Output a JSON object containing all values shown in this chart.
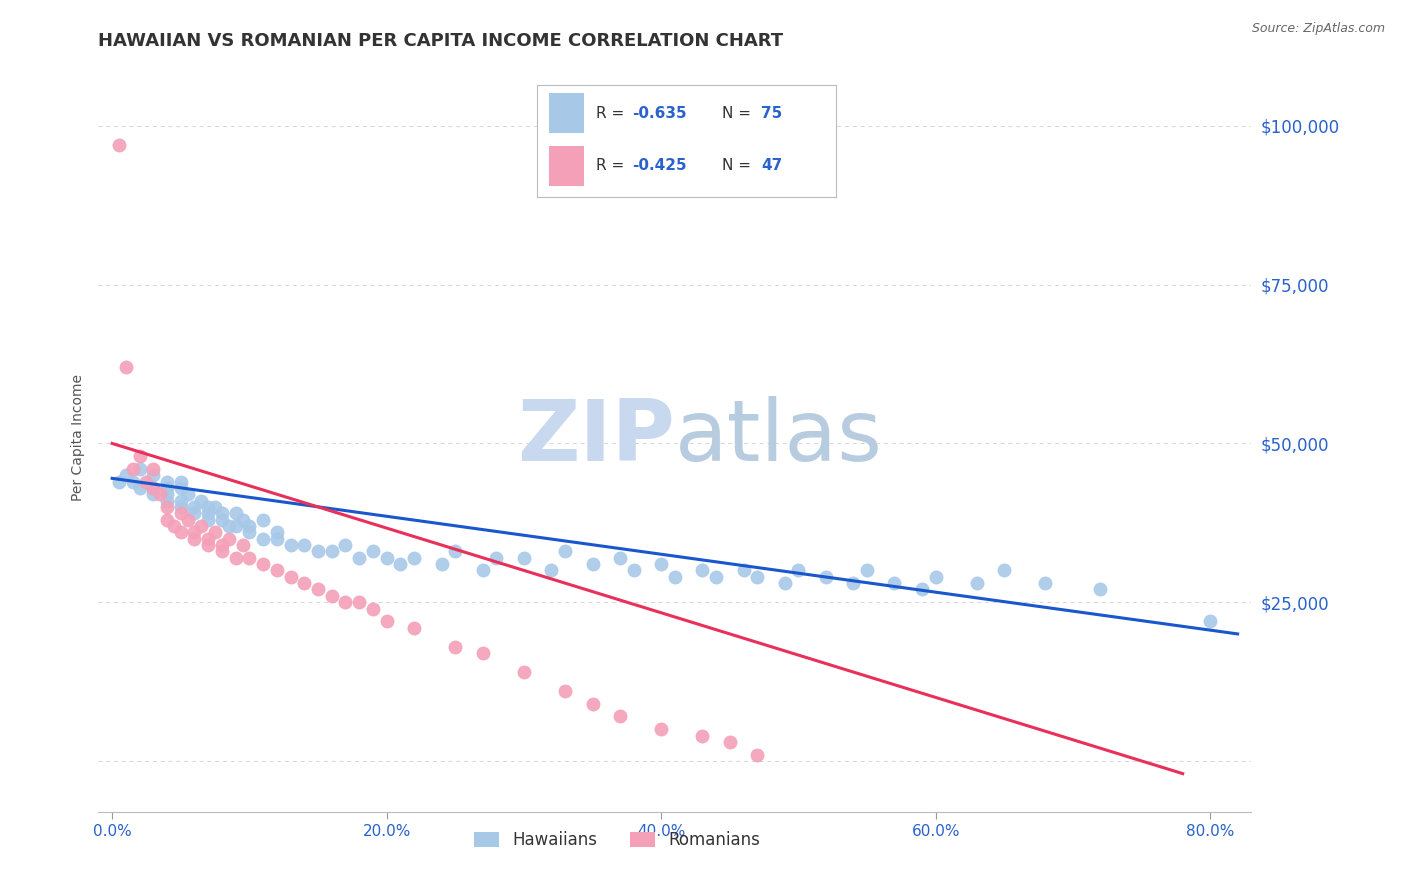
{
  "title": "HAWAIIAN VS ROMANIAN PER CAPITA INCOME CORRELATION CHART",
  "source": "Source: ZipAtlas.com",
  "ylabel": "Per Capita Income",
  "xlabel_ticks": [
    "0.0%",
    "20.0%",
    "40.0%",
    "60.0%",
    "80.0%"
  ],
  "xlabel_vals": [
    0.0,
    0.2,
    0.4,
    0.6,
    0.8
  ],
  "ytick_vals": [
    0,
    25000,
    50000,
    75000,
    100000
  ],
  "ytick_labels": [
    "",
    "$25,000",
    "$50,000",
    "$75,000",
    "$100,000"
  ],
  "xlim": [
    -0.01,
    0.83
  ],
  "ylim": [
    -8000,
    110000
  ],
  "hawaiian_color": "#a8c8e8",
  "romanian_color": "#f4a0b8",
  "trend_hawaiian_color": "#1a56cc",
  "trend_romanian_color": "#e8305a",
  "watermark_zip": "ZIP",
  "watermark_atlas": "atlas",
  "watermark_color_zip": "#c8d8ee",
  "watermark_color_atlas": "#b8cce0",
  "background_color": "#ffffff",
  "title_color": "#333333",
  "axis_label_color": "#2962cc",
  "grid_color": "#cccccc",
  "legend_label_color": "#333333",
  "legend_value_color": "#2962cc",
  "hawaiian_x": [
    0.005,
    0.01,
    0.015,
    0.02,
    0.02,
    0.03,
    0.03,
    0.03,
    0.04,
    0.04,
    0.04,
    0.04,
    0.05,
    0.05,
    0.05,
    0.05,
    0.055,
    0.06,
    0.06,
    0.065,
    0.07,
    0.07,
    0.07,
    0.075,
    0.08,
    0.08,
    0.085,
    0.09,
    0.09,
    0.095,
    0.1,
    0.1,
    0.11,
    0.11,
    0.12,
    0.12,
    0.13,
    0.14,
    0.15,
    0.16,
    0.17,
    0.18,
    0.19,
    0.2,
    0.21,
    0.22,
    0.24,
    0.25,
    0.27,
    0.28,
    0.3,
    0.32,
    0.33,
    0.35,
    0.37,
    0.38,
    0.4,
    0.41,
    0.43,
    0.44,
    0.46,
    0.47,
    0.49,
    0.5,
    0.52,
    0.54,
    0.55,
    0.57,
    0.59,
    0.6,
    0.63,
    0.65,
    0.68,
    0.72,
    0.8
  ],
  "hawaiian_y": [
    44000,
    45000,
    44000,
    43000,
    46000,
    45000,
    43000,
    42000,
    44000,
    43000,
    42000,
    41000,
    44000,
    43000,
    41000,
    40000,
    42000,
    40000,
    39000,
    41000,
    40000,
    39000,
    38000,
    40000,
    39000,
    38000,
    37000,
    39000,
    37000,
    38000,
    37000,
    36000,
    38000,
    35000,
    36000,
    35000,
    34000,
    34000,
    33000,
    33000,
    34000,
    32000,
    33000,
    32000,
    31000,
    32000,
    31000,
    33000,
    30000,
    32000,
    32000,
    30000,
    33000,
    31000,
    32000,
    30000,
    31000,
    29000,
    30000,
    29000,
    30000,
    29000,
    28000,
    30000,
    29000,
    28000,
    30000,
    28000,
    27000,
    29000,
    28000,
    30000,
    28000,
    27000,
    22000
  ],
  "romanian_x": [
    0.005,
    0.01,
    0.015,
    0.02,
    0.025,
    0.03,
    0.03,
    0.035,
    0.04,
    0.04,
    0.045,
    0.05,
    0.05,
    0.055,
    0.06,
    0.06,
    0.065,
    0.07,
    0.07,
    0.075,
    0.08,
    0.08,
    0.085,
    0.09,
    0.095,
    0.1,
    0.11,
    0.12,
    0.13,
    0.14,
    0.15,
    0.16,
    0.17,
    0.18,
    0.19,
    0.2,
    0.22,
    0.25,
    0.27,
    0.3,
    0.33,
    0.35,
    0.37,
    0.4,
    0.43,
    0.45,
    0.47
  ],
  "romanian_y": [
    97000,
    62000,
    46000,
    48000,
    44000,
    43000,
    46000,
    42000,
    40000,
    38000,
    37000,
    39000,
    36000,
    38000,
    36000,
    35000,
    37000,
    35000,
    34000,
    36000,
    34000,
    33000,
    35000,
    32000,
    34000,
    32000,
    31000,
    30000,
    29000,
    28000,
    27000,
    26000,
    25000,
    25000,
    24000,
    22000,
    21000,
    18000,
    17000,
    14000,
    11000,
    9000,
    7000,
    5000,
    4000,
    3000,
    1000
  ],
  "trend_h_x0": 0.0,
  "trend_h_x1": 0.82,
  "trend_h_y0": 44500,
  "trend_h_y1": 20000,
  "trend_r_x0": 0.0,
  "trend_r_x1": 0.78,
  "trend_r_y0": 50000,
  "trend_r_y1": -2000
}
